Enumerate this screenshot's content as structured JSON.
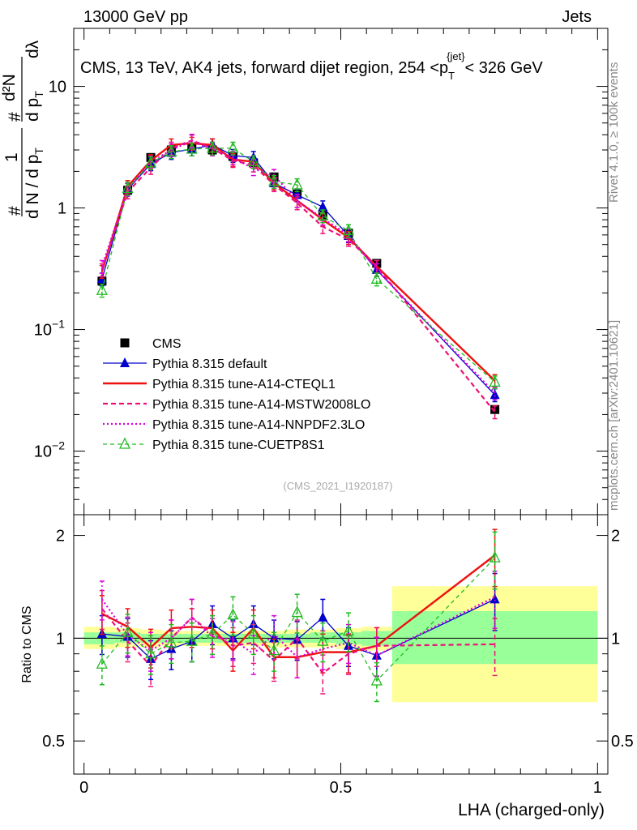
{
  "header": {
    "left": "13000 GeV pp",
    "right": "Jets"
  },
  "side_text": {
    "rivet": "Rivet 4.1.0, ≥ 100k events",
    "mcplots": "mcplots.cern.ch [arXiv:2401.10621]"
  },
  "analysis_id": "(CMS_2021_I1920187)",
  "colors": {
    "data": "#000000",
    "default": "#0000cc",
    "cteql1": "#ee1111",
    "mstw": "#ee1177",
    "nnpdf": "#dd00dd",
    "cuetp8s1": "#22bb22",
    "band_outer": "#ffff99",
    "band_inner": "#99ff99"
  },
  "chart_data": [
    {
      "type": "line",
      "title": "CMS, 13 TeV, AK4 jets, forward dijet region, 254 <p_T^{jet}< 326 GeV",
      "title_parts": {
        "main": "CMS, 13 TeV, AK4 jets, forward dijet region, 254 <p",
        "sub": "T",
        "sup": "{jet}",
        "end": "< 326 GeV"
      },
      "ylabel": "1/(dN/dp_T) d²N/(dp_T dλ)",
      "ylabel_parts": {
        "hash": "#",
        "one": "1",
        "dN": "d N / d p",
        "sub_T": "T",
        "d2N": "d²N",
        "dpT": "d p",
        "dlambda": "dλ"
      },
      "yscale": "log",
      "ylim": [
        0.003,
        30
      ],
      "yticks": [
        {
          "v": 0.01,
          "b": "10",
          "e": "−2"
        },
        {
          "v": 0.1,
          "b": "10",
          "e": "−1"
        },
        {
          "v": 1,
          "b": "1",
          "e": ""
        },
        {
          "v": 10,
          "b": "10",
          "e": ""
        }
      ],
      "xlim": [
        -0.02,
        1.02
      ],
      "x": [
        0.035,
        0.085,
        0.13,
        0.17,
        0.21,
        0.25,
        0.29,
        0.33,
        0.37,
        0.415,
        0.465,
        0.515,
        0.57,
        0.8
      ],
      "series": [
        {
          "name": "CMS",
          "style": "data",
          "values": [
            0.25,
            1.4,
            2.6,
            3.0,
            3.1,
            3.0,
            2.65,
            2.35,
            1.8,
            1.3,
            0.88,
            0.62,
            0.35,
            0.022
          ]
        },
        {
          "name": "Pythia 8.315 default",
          "style": "default",
          "values": [
            0.26,
            1.42,
            2.3,
            2.85,
            3.05,
            3.3,
            2.7,
            2.6,
            1.6,
            1.28,
            1.02,
            0.59,
            0.31,
            0.029
          ]
        },
        {
          "name": "Pythia 8.315 tune-A14-CTEQL1",
          "style": "cteql1",
          "values": [
            0.3,
            1.5,
            2.45,
            3.3,
            3.4,
            3.3,
            2.5,
            2.4,
            1.6,
            1.15,
            0.8,
            0.57,
            0.33,
            0.038
          ]
        },
        {
          "name": "Pythia 8.315 tune-A14-MSTW2008LO",
          "style": "mstw",
          "values": [
            0.31,
            1.35,
            2.15,
            3.1,
            3.6,
            3.1,
            2.45,
            2.25,
            1.55,
            1.1,
            0.7,
            0.55,
            0.33,
            0.021
          ]
        },
        {
          "name": "Pythia 8.315 tune-A14-NNPDF2.3LO",
          "style": "nnpdf",
          "values": [
            0.33,
            1.43,
            2.38,
            3.0,
            3.55,
            3.05,
            2.6,
            2.1,
            1.85,
            1.15,
            0.82,
            0.6,
            0.31,
            0.03
          ]
        },
        {
          "name": "Pythia 8.315 tune-CUETP8S1",
          "style": "cuetp8s1",
          "values": [
            0.21,
            1.45,
            2.35,
            2.9,
            3.05,
            3.1,
            3.1,
            2.4,
            1.65,
            1.55,
            0.86,
            0.65,
            0.26,
            0.037
          ]
        }
      ]
    },
    {
      "type": "line",
      "ylabel": "Ratio to CMS",
      "xlabel": "LHA (charged-only)",
      "yscale": "log",
      "ylim": [
        0.4,
        2.3
      ],
      "yticks": [
        {
          "v": 0.5,
          "label": "0.5"
        },
        {
          "v": 1,
          "label": "1"
        },
        {
          "v": 2,
          "label": "2"
        }
      ],
      "xticks": [
        {
          "v": 0,
          "label": "0"
        },
        {
          "v": 0.5,
          "label": "0.5"
        },
        {
          "v": 1,
          "label": "1"
        }
      ],
      "bands": {
        "edges": [
          0.0,
          0.06,
          0.11,
          0.15,
          0.19,
          0.23,
          0.27,
          0.31,
          0.35,
          0.39,
          0.44,
          0.49,
          0.54,
          0.6,
          1.0
        ],
        "outer_lo": [
          0.93,
          0.94,
          0.94,
          0.95,
          0.95,
          0.95,
          0.95,
          0.95,
          0.94,
          0.94,
          0.94,
          0.93,
          0.92,
          0.65
        ],
        "outer_hi": [
          1.08,
          1.07,
          1.06,
          1.05,
          1.05,
          1.05,
          1.05,
          1.05,
          1.05,
          1.06,
          1.06,
          1.07,
          1.08,
          1.42
        ],
        "inner_lo": [
          0.96,
          0.97,
          0.97,
          0.97,
          0.97,
          0.97,
          0.97,
          0.97,
          0.97,
          0.97,
          0.97,
          0.96,
          0.95,
          0.84
        ],
        "inner_hi": [
          1.04,
          1.04,
          1.03,
          1.03,
          1.03,
          1.03,
          1.03,
          1.03,
          1.03,
          1.03,
          1.04,
          1.04,
          1.05,
          1.2
        ]
      },
      "series": [
        {
          "name": "Pythia 8.315 default",
          "style": "default",
          "values": [
            1.03,
            1.01,
            0.87,
            0.93,
            0.98,
            1.1,
            1.0,
            1.1,
            1.0,
            0.99,
            1.15,
            0.95,
            0.89,
            1.3
          ]
        },
        {
          "name": "Pythia 8.315 tune-A14-CTEQL1",
          "style": "cteql1",
          "values": [
            1.18,
            1.08,
            0.94,
            1.07,
            1.08,
            1.07,
            0.92,
            1.07,
            0.88,
            0.88,
            0.91,
            0.91,
            0.95,
            1.75
          ]
        },
        {
          "name": "Pythia 8.315 tune-A14-MSTW2008LO",
          "style": "mstw",
          "values": [
            1.22,
            0.98,
            0.83,
            1.0,
            1.15,
            1.03,
            0.95,
            0.97,
            0.86,
            1.0,
            0.79,
            0.9,
            0.95,
            0.96
          ]
        },
        {
          "name": "Pythia 8.315 tune-A14-NNPDF2.3LO",
          "style": "nnpdf",
          "values": [
            1.3,
            1.02,
            0.92,
            1.0,
            1.15,
            1.01,
            0.99,
            0.9,
            1.03,
            0.88,
            0.93,
            0.97,
            0.89,
            1.32
          ]
        },
        {
          "name": "Pythia 8.315 tune-CUETP8S1",
          "style": "cuetp8s1",
          "values": [
            0.84,
            1.04,
            0.9,
            0.97,
            0.98,
            1.03,
            1.17,
            1.03,
            0.92,
            1.19,
            0.98,
            1.05,
            0.75,
            1.72
          ]
        }
      ]
    }
  ]
}
